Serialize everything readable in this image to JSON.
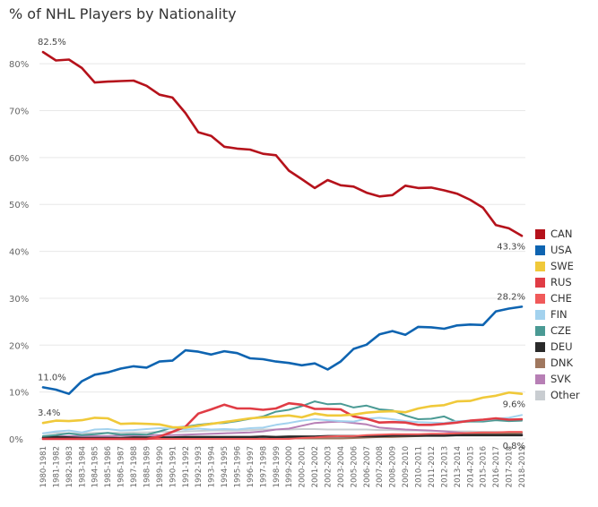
{
  "chart_data": {
    "type": "line",
    "title": "% of NHL Players by Nationality",
    "xlabel": "",
    "ylabel": "",
    "ylim": [
      0,
      85
    ],
    "y_ticks": [
      0,
      10,
      20,
      30,
      40,
      50,
      60,
      70,
      80
    ],
    "y_tick_labels": [
      "0%",
      "10%",
      "20%",
      "30%",
      "40%",
      "50%",
      "60%",
      "70%",
      "80%"
    ],
    "grid": "horizontal",
    "legend_position": "right",
    "categories": [
      "1980-1981",
      "1981-1982",
      "1982-1983",
      "1983-1984",
      "1984-1985",
      "1985-1986",
      "1986-1987",
      "1987-1988",
      "1988-1989",
      "1989-1990",
      "1990-1991",
      "1991-1992",
      "1992-1993",
      "1993-1994",
      "1994-1995",
      "1995-1996",
      "1996-1997",
      "1997-1998",
      "1998-1999",
      "1999-2000",
      "2000-2001",
      "2001-2002",
      "2002-2003",
      "2003-2004",
      "2005-2006",
      "2006-2007",
      "2007-2008",
      "2008-2009",
      "2009-2010",
      "2010-2011",
      "2011-2012",
      "2012-2013",
      "2013-2014",
      "2014-2015",
      "2015-2016",
      "2016-2017",
      "2017-2018",
      "2018-2019"
    ],
    "series": [
      {
        "name": "CAN",
        "color": "#b5121b",
        "values": [
          82.5,
          80.7,
          80.9,
          79.1,
          76.0,
          76.2,
          76.3,
          76.4,
          75.3,
          73.4,
          72.8,
          69.5,
          65.4,
          64.6,
          62.3,
          61.9,
          61.7,
          60.8,
          60.5,
          57.2,
          55.4,
          53.5,
          55.2,
          54.1,
          53.8,
          52.5,
          51.7,
          52.0,
          54.0,
          53.5,
          53.6,
          53.0,
          52.3,
          51.0,
          49.3,
          45.6,
          44.9,
          43.3
        ]
      },
      {
        "name": "USA",
        "color": "#0e64b1",
        "values": [
          11.0,
          10.5,
          9.6,
          12.3,
          13.7,
          14.2,
          15.0,
          15.5,
          15.2,
          16.5,
          16.7,
          18.9,
          18.6,
          18.0,
          18.7,
          18.3,
          17.2,
          17.0,
          16.5,
          16.2,
          15.7,
          16.1,
          14.8,
          16.5,
          19.2,
          20.1,
          22.3,
          23.0,
          22.2,
          23.9,
          23.8,
          23.5,
          24.2,
          24.4,
          24.3,
          27.2,
          27.8,
          28.2
        ]
      },
      {
        "name": "SWE",
        "color": "#f0c93a",
        "values": [
          3.4,
          3.9,
          3.8,
          4.0,
          4.5,
          4.4,
          3.2,
          3.3,
          3.2,
          3.1,
          2.5,
          2.4,
          2.8,
          3.2,
          3.6,
          4.0,
          4.4,
          4.6,
          4.8,
          5.0,
          4.6,
          5.4,
          5.0,
          5.0,
          5.2,
          5.6,
          5.8,
          5.9,
          5.7,
          6.5,
          7.0,
          7.2,
          8.0,
          8.1,
          8.8,
          9.2,
          9.9,
          9.6
        ]
      },
      {
        "name": "RUS",
        "color": "#e03c45",
        "values": [
          0.0,
          0.0,
          0.0,
          0.0,
          0.0,
          0.0,
          0.0,
          0.0,
          0.0,
          0.5,
          1.5,
          2.6,
          5.4,
          6.3,
          7.3,
          6.5,
          6.5,
          6.2,
          6.5,
          7.6,
          7.3,
          6.4,
          6.4,
          6.3,
          4.8,
          4.3,
          3.5,
          3.6,
          3.5,
          3.0,
          3.0,
          3.2,
          3.5,
          3.9,
          4.1,
          4.4,
          4.1,
          4.2
        ]
      },
      {
        "name": "CHE",
        "color": "#f05a5a",
        "values": [
          0.0,
          0.0,
          0.0,
          0.0,
          0.0,
          0.0,
          0.0,
          0.0,
          0.0,
          0.0,
          0.0,
          0.0,
          0.0,
          0.0,
          0.0,
          0.0,
          0.0,
          0.0,
          0.0,
          0.0,
          0.2,
          0.3,
          0.5,
          0.6,
          0.6,
          0.8,
          0.9,
          1.0,
          1.0,
          1.0,
          1.1,
          1.1,
          1.2,
          1.3,
          1.4,
          1.4,
          1.5,
          1.5
        ]
      },
      {
        "name": "FIN",
        "color": "#a3d2ee",
        "values": [
          1.2,
          1.6,
          1.8,
          1.4,
          2.0,
          2.1,
          1.8,
          1.9,
          2.1,
          2.3,
          2.2,
          2.0,
          2.2,
          2.0,
          2.1,
          2.0,
          2.3,
          2.4,
          3.0,
          3.4,
          3.9,
          4.2,
          4.0,
          3.8,
          3.7,
          4.3,
          4.5,
          4.2,
          3.8,
          3.6,
          3.5,
          3.4,
          3.8,
          3.9,
          4.0,
          4.3,
          4.5,
          5.1
        ]
      },
      {
        "name": "CZE",
        "color": "#4a9a94",
        "values": [
          0.6,
          0.8,
          1.2,
          0.8,
          1.0,
          1.3,
          0.9,
          1.0,
          0.9,
          1.6,
          2.4,
          2.6,
          3.0,
          3.3,
          3.4,
          3.8,
          4.3,
          4.8,
          5.8,
          6.2,
          7.0,
          8.0,
          7.4,
          7.5,
          6.7,
          7.1,
          6.3,
          6.1,
          5.0,
          4.2,
          4.3,
          4.8,
          3.6,
          3.7,
          3.7,
          4.0,
          3.8,
          3.9
        ]
      },
      {
        "name": "DEU",
        "color": "#2a2a2a",
        "values": [
          0.3,
          0.4,
          0.3,
          0.2,
          0.2,
          0.2,
          0.2,
          0.3,
          0.3,
          0.3,
          0.3,
          0.4,
          0.4,
          0.4,
          0.4,
          0.4,
          0.4,
          0.5,
          0.4,
          0.5,
          0.5,
          0.5,
          0.6,
          0.6,
          0.6,
          0.6,
          0.6,
          0.7,
          0.7,
          0.7,
          0.7,
          0.7,
          0.8,
          0.8,
          0.8,
          0.8,
          0.8,
          0.8
        ]
      },
      {
        "name": "DNK",
        "color": "#a0785f",
        "values": [
          0.0,
          0.0,
          0.0,
          0.0,
          0.0,
          0.0,
          0.0,
          0.0,
          0.0,
          0.0,
          0.0,
          0.0,
          0.0,
          0.0,
          0.0,
          0.0,
          0.0,
          0.0,
          0.0,
          0.1,
          0.1,
          0.1,
          0.1,
          0.1,
          0.2,
          0.3,
          0.4,
          0.4,
          0.5,
          0.6,
          0.7,
          0.8,
          0.9,
          1.0,
          1.1,
          1.1,
          1.2,
          1.3
        ]
      },
      {
        "name": "SVK",
        "color": "#b77fb5",
        "values": [
          0.4,
          0.5,
          0.6,
          0.6,
          0.6,
          0.6,
          0.7,
          0.7,
          0.8,
          0.8,
          0.8,
          0.9,
          1.0,
          1.1,
          1.2,
          1.3,
          1.4,
          1.6,
          2.0,
          2.2,
          2.8,
          3.4,
          3.6,
          3.7,
          3.4,
          3.1,
          2.4,
          2.2,
          2.0,
          1.9,
          1.8,
          1.6,
          1.4,
          1.2,
          1.2,
          1.1,
          1.0,
          1.0
        ]
      },
      {
        "name": "Other",
        "color": "#c9cdd1",
        "values": [
          1.2,
          1.3,
          1.2,
          1.2,
          1.3,
          1.3,
          1.3,
          1.4,
          1.4,
          1.5,
          1.5,
          1.6,
          1.7,
          1.8,
          1.8,
          1.8,
          1.9,
          2.0,
          2.0,
          2.0,
          2.1,
          2.1,
          2.0,
          2.0,
          2.0,
          2.0,
          1.9,
          1.9,
          1.8,
          1.8,
          1.7,
          1.7,
          1.6,
          1.6,
          1.5,
          1.5,
          1.4,
          1.4
        ]
      }
    ],
    "annotations": [
      {
        "text": "82.5%",
        "series": "CAN",
        "index": 0,
        "anchor": "start",
        "pos": "above"
      },
      {
        "text": "43.3%",
        "series": "CAN",
        "index": 37,
        "anchor": "end",
        "pos": "below"
      },
      {
        "text": "28.2%",
        "series": "USA",
        "index": 37,
        "anchor": "end",
        "pos": "above"
      },
      {
        "text": "11.0%",
        "series": "USA",
        "index": 0,
        "anchor": "start",
        "pos": "above"
      },
      {
        "text": "9.6%",
        "series": "SWE",
        "index": 37,
        "anchor": "end",
        "pos": "below"
      },
      {
        "text": "3.4%",
        "series": "SWE",
        "index": 0,
        "anchor": "start",
        "pos": "above"
      },
      {
        "text": "0.8%",
        "series": "DEU",
        "index": 37,
        "anchor": "end",
        "pos": "below"
      }
    ]
  }
}
